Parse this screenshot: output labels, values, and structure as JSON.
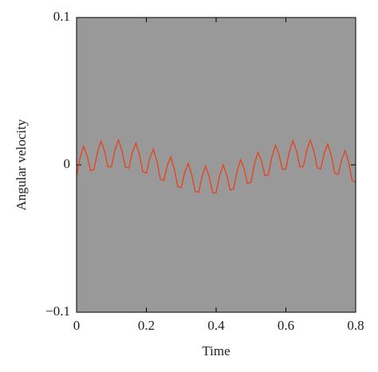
{
  "chart_data": {
    "type": "line",
    "xlabel": "Time",
    "ylabel": "Angular velocity",
    "x": [
      0,
      0.01,
      0.02,
      0.03,
      0.04,
      0.05,
      0.06,
      0.07,
      0.08,
      0.09,
      0.1,
      0.11,
      0.12,
      0.13,
      0.14,
      0.15,
      0.16,
      0.17,
      0.18,
      0.19,
      0.2,
      0.21,
      0.22,
      0.23,
      0.24,
      0.25,
      0.26,
      0.27,
      0.28,
      0.29,
      0.3,
      0.31,
      0.32,
      0.33,
      0.34,
      0.35,
      0.36,
      0.37,
      0.38,
      0.39,
      0.4,
      0.41,
      0.42,
      0.43,
      0.44,
      0.45,
      0.46,
      0.47,
      0.48,
      0.49,
      0.5,
      0.51,
      0.52,
      0.53,
      0.54,
      0.55,
      0.56,
      0.57,
      0.58,
      0.59,
      0.6,
      0.61,
      0.62,
      0.63,
      0.64,
      0.65,
      0.66,
      0.67,
      0.68,
      0.69,
      0.7,
      0.71,
      0.72,
      0.73,
      0.74,
      0.75,
      0.76,
      0.77,
      0.78,
      0.79,
      0.8
    ],
    "series": [
      {
        "color": "#e8401c",
        "values": [
          -0.0075,
          0.0047,
          0.0125,
          0.0065,
          -0.0039,
          -0.0032,
          0.0086,
          0.016,
          0.0096,
          -0.0013,
          -0.0012,
          0.0101,
          0.0169,
          0.0099,
          -0.0016,
          -0.0021,
          0.0086,
          0.0149,
          0.0073,
          -0.0047,
          -0.0056,
          0.0047,
          0.0106,
          0.0027,
          -0.0096,
          -0.0106,
          -0.0005,
          0.0054,
          -0.0025,
          -0.0146,
          -0.0155,
          -0.0051,
          0.0011,
          -0.0064,
          -0.0181,
          -0.0186,
          -0.0077,
          -0.0009,
          -0.0079,
          -0.019,
          -0.0189,
          -0.0074,
          0,
          -0.0064,
          -0.017,
          -0.0163,
          -0.0043,
          0.0035,
          -0.0025,
          -0.0127,
          -0.0117,
          0.0006,
          0.0085,
          0.0027,
          -0.0075,
          -0.0065,
          0.0056,
          0.0134,
          0.0073,
          -0.0032,
          -0.0026,
          0.0091,
          0.0165,
          0.0099,
          -0.0012,
          -0.0011,
          0.01,
          0.0168,
          0.0096,
          -0.0021,
          -0.0026,
          0.008,
          0.0142,
          0.0065,
          -0.0056,
          -0.0065,
          0.0037,
          0.0096,
          0.0016,
          -0.0106,
          -0.0117
        ]
      }
    ],
    "xlim": [
      0,
      0.8
    ],
    "xticks": [
      0,
      0.2,
      0.4,
      0.6,
      0.8
    ],
    "ylim": [
      -0.1,
      0.1
    ],
    "yticks": [
      {
        "value": -0.1,
        "label": "−0.1"
      },
      0,
      0.1
    ],
    "background": "#999999"
  }
}
